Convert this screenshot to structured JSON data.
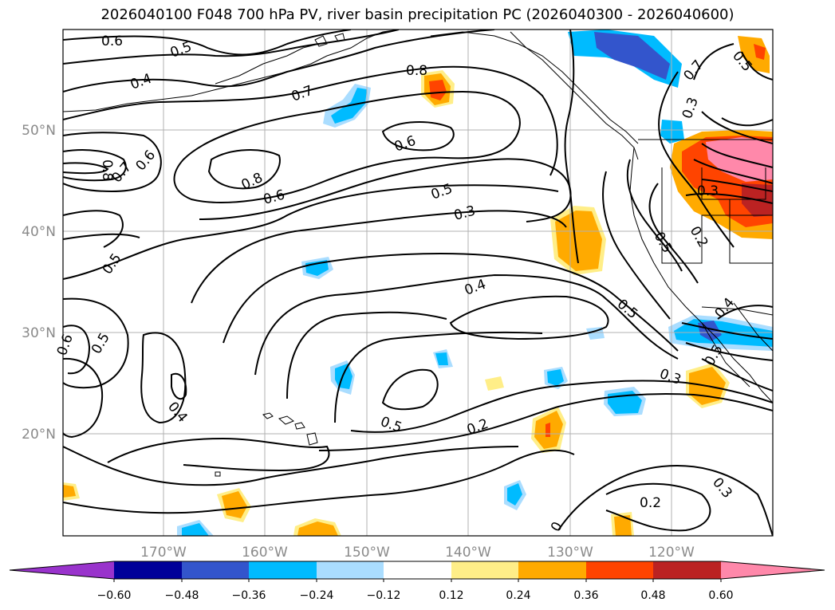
{
  "title": "2026040100 F048 700 hPa PV, river basin precipitation PC (2026040300 - 2026040600)",
  "lon_ticks": [
    "170°W",
    "160°W",
    "150°W",
    "140°W",
    "130°W",
    "120°W"
  ],
  "lat_ticks": [
    "50°N",
    "40°N",
    "30°N",
    "20°N"
  ],
  "colorbar": {
    "ticks": [
      "−0.60",
      "−0.48",
      "−0.36",
      "−0.24",
      "−0.12",
      "0.12",
      "0.24",
      "0.36",
      "0.48",
      "0.60"
    ],
    "colors": [
      "#9933cc",
      "#000099",
      "#3355cc",
      "#00bbff",
      "#aaddff",
      "#ffffff",
      "#ffee88",
      "#ffaa00",
      "#ff4400",
      "#bb2222",
      "#ff88aa"
    ]
  },
  "contour_labels": [
    {
      "text": "0.6"
    },
    {
      "text": "0.5"
    },
    {
      "text": "0.4"
    },
    {
      "text": "0.8"
    },
    {
      "text": "0.7"
    },
    {
      "text": "0.6"
    },
    {
      "text": "0.8"
    },
    {
      "text": "0.7"
    },
    {
      "text": "0.6"
    },
    {
      "text": "0.8"
    },
    {
      "text": "0.6"
    },
    {
      "text": "0.5"
    },
    {
      "text": "0.3"
    },
    {
      "text": "0.5"
    },
    {
      "text": "0.4"
    },
    {
      "text": "0.5"
    },
    {
      "text": "0.6"
    },
    {
      "text": "0.5"
    },
    {
      "text": "0.4"
    },
    {
      "text": "0.5"
    },
    {
      "text": "0.2"
    },
    {
      "text": "0.3"
    },
    {
      "text": "0.2"
    },
    {
      "text": "0.3"
    },
    {
      "text": "0.3"
    },
    {
      "text": "0.5"
    },
    {
      "text": "0.7"
    },
    {
      "text": "0.5"
    },
    {
      "text": "0.3"
    },
    {
      "text": "0.2"
    },
    {
      "text": "0.4"
    },
    {
      "text": "0.5"
    },
    {
      "text": "0"
    }
  ]
}
